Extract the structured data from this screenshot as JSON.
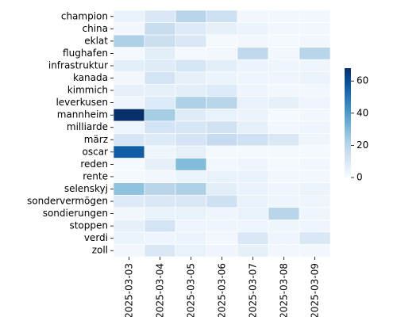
{
  "chart_data": {
    "type": "heatmap",
    "title": "",
    "xlabel": "",
    "ylabel": "",
    "colormap": "Blues",
    "gridlines": "white cell borders",
    "colorbar": {
      "position": "right",
      "vmin": 0,
      "vmax": 68,
      "ticks": [
        0,
        20,
        40,
        60
      ]
    },
    "x": [
      "2025-03-03",
      "2025-03-04",
      "2025-03-05",
      "2025-03-06",
      "2025-03-07",
      "2025-03-08",
      "2025-03-09"
    ],
    "y": [
      "champion",
      "china",
      "eklat",
      "flughafen",
      "infrastruktur",
      "kanada",
      "kimmich",
      "leverkusen",
      "mannheim",
      "milliarde",
      "märz",
      "oscar",
      "reden",
      "rente",
      "selenskyj",
      "sondervermögen",
      "sondierungen",
      "stoppen",
      "verdi",
      "zoll"
    ],
    "values": [
      [
        5,
        10,
        20,
        14,
        2,
        2,
        2
      ],
      [
        2,
        16,
        9,
        6,
        4,
        2,
        2
      ],
      [
        22,
        15,
        10,
        1,
        2,
        1,
        2
      ],
      [
        1,
        7,
        1,
        2,
        18,
        2,
        20
      ],
      [
        7,
        8,
        11,
        7,
        4,
        3,
        3
      ],
      [
        2,
        12,
        6,
        4,
        3,
        3,
        4
      ],
      [
        6,
        6,
        7,
        9,
        3,
        2,
        2
      ],
      [
        3,
        9,
        22,
        20,
        5,
        6,
        3
      ],
      [
        68,
        24,
        8,
        5,
        4,
        1,
        2
      ],
      [
        3,
        12,
        11,
        13,
        6,
        2,
        3
      ],
      [
        11,
        9,
        12,
        17,
        14,
        10,
        3
      ],
      [
        56,
        3,
        6,
        1,
        1,
        1,
        1
      ],
      [
        1,
        6,
        30,
        2,
        3,
        1,
        2
      ],
      [
        1,
        2,
        4,
        5,
        5,
        2,
        2
      ],
      [
        28,
        20,
        22,
        7,
        5,
        3,
        4
      ],
      [
        9,
        10,
        10,
        14,
        5,
        3,
        3
      ],
      [
        2,
        5,
        5,
        3,
        5,
        20,
        3
      ],
      [
        6,
        12,
        3,
        3,
        3,
        3,
        3
      ],
      [
        4,
        3,
        4,
        2,
        10,
        3,
        10
      ],
      [
        2,
        10,
        5,
        3,
        6,
        2,
        2
      ]
    ]
  }
}
